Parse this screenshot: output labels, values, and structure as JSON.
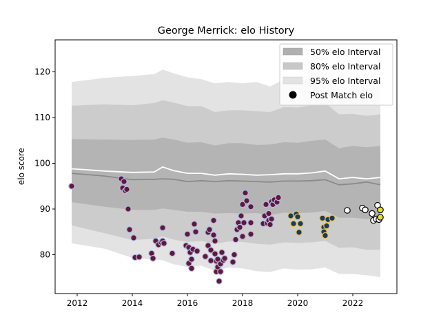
{
  "chart_data": {
    "type": "scatter",
    "title": "George Merrick: elo History",
    "xlabel": "",
    "ylabel": "elo score",
    "xlim": [
      2011.2,
      2023.6
    ],
    "ylim": [
      71.5,
      127
    ],
    "x_ticks": [
      "2012",
      "2014",
      "2016",
      "2018",
      "2020",
      "2022"
    ],
    "y_ticks": [
      "80",
      "90",
      "100",
      "110",
      "120"
    ],
    "grid": false,
    "legend_position": "top-right",
    "legend": [
      {
        "label": "50% elo Interval",
        "color": "#b0b0b0"
      },
      {
        "label": "80% elo Interval",
        "color": "#c8c8c8"
      },
      {
        "label": "95% elo Interval",
        "color": "#e3e3e3"
      },
      {
        "label": "Post Match elo",
        "color": "#000000"
      }
    ],
    "bands": {
      "x": [
        2011.8,
        2013.0,
        2014.0,
        2014.8,
        2015.1,
        2015.5,
        2016.0,
        2016.5,
        2017.0,
        2017.5,
        2018.0,
        2018.5,
        2019.0,
        2019.5,
        2020.0,
        2020.5,
        2021.0,
        2021.5,
        2022.0,
        2022.5,
        2023.0
      ],
      "p95_upper": [
        117.8,
        118.7,
        119.1,
        119.5,
        120.5,
        119.7,
        118.8,
        118.4,
        117.5,
        117.8,
        117.5,
        117.8,
        116.8,
        118.3,
        118.2,
        118.6,
        119.0,
        116.7,
        117.1,
        116.5,
        116.6
      ],
      "p80_upper": [
        112.6,
        112.9,
        112.7,
        113.2,
        113.8,
        113.3,
        112.5,
        112.5,
        111.2,
        111.6,
        111.6,
        111.4,
        111.2,
        112.3,
        112.2,
        112.7,
        113.2,
        110.7,
        110.8,
        110.4,
        110.7
      ],
      "p50_upper": [
        105.3,
        105.2,
        105.1,
        105.2,
        105.6,
        105.2,
        104.5,
        104.6,
        103.9,
        104.4,
        104.4,
        104.0,
        104.1,
        104.6,
        104.5,
        104.9,
        105.2,
        103.3,
        103.8,
        103.5,
        103.8
      ],
      "median": [
        97.8,
        97.2,
        96.4,
        96.5,
        96.6,
        96.5,
        96.0,
        96.2,
        96.0,
        96.2,
        96.1,
        96.0,
        95.9,
        96.1,
        96.1,
        96.2,
        96.4,
        95.3,
        95.5,
        95.9,
        95.3
      ],
      "mean": [
        98.8,
        98.3,
        98.0,
        98.1,
        99.2,
        98.4,
        97.8,
        97.8,
        97.4,
        97.7,
        97.6,
        97.4,
        97.5,
        97.7,
        97.7,
        97.9,
        98.3,
        96.6,
        96.9,
        96.6,
        96.9
      ],
      "p50_lower": [
        91.5,
        90.5,
        89.8,
        89.8,
        90.1,
        89.8,
        89.4,
        89.4,
        89.0,
        89.1,
        89.0,
        89.1,
        88.7,
        89.2,
        89.1,
        89.2,
        89.6,
        88.1,
        88.1,
        87.8,
        87.9
      ],
      "p80_lower": [
        86.4,
        84.7,
        83.2,
        83.5,
        84.0,
        83.3,
        82.8,
        83.0,
        82.4,
        82.9,
        82.8,
        82.4,
        82.2,
        82.7,
        82.6,
        82.7,
        83.0,
        81.5,
        81.6,
        81.1,
        81.1
      ],
      "p95_lower": [
        82.5,
        81.3,
        79.3,
        78.9,
        78.8,
        77.9,
        77.3,
        77.6,
        76.5,
        77.2,
        77.0,
        76.4,
        76.2,
        77.0,
        76.7,
        76.8,
        77.2,
        75.8,
        75.8,
        75.5,
        75.1
      ]
    },
    "series": [
      {
        "color": "#5e1a3a",
        "edge": "#b8b8e6",
        "points": [
          [
            2011.8,
            95.0
          ],
          [
            2013.6,
            96.6
          ],
          [
            2013.7,
            96.0
          ],
          [
            2013.65,
            94.6
          ],
          [
            2013.75,
            94.0
          ],
          [
            2013.8,
            94.3
          ],
          [
            2013.85,
            90.0
          ],
          [
            2013.9,
            85.5
          ],
          [
            2014.05,
            83.7
          ],
          [
            2014.1,
            79.4
          ],
          [
            2014.25,
            79.5
          ],
          [
            2014.7,
            80.3
          ],
          [
            2014.75,
            79.2
          ],
          [
            2014.85,
            83.0
          ],
          [
            2014.95,
            82.2
          ],
          [
            2015.05,
            82.7
          ],
          [
            2015.1,
            83.0
          ],
          [
            2015.15,
            82.5
          ],
          [
            2015.1,
            85.9
          ],
          [
            2015.45,
            80.3
          ],
          [
            2015.95,
            82.0
          ],
          [
            2016.0,
            84.5
          ],
          [
            2016.05,
            78.1
          ],
          [
            2016.05,
            81.6
          ],
          [
            2016.1,
            80.5
          ],
          [
            2016.15,
            79.0
          ],
          [
            2016.15,
            77.0
          ],
          [
            2016.2,
            81.2
          ],
          [
            2016.25,
            86.7
          ],
          [
            2016.3,
            85.0
          ],
          [
            2016.35,
            80.8
          ],
          [
            2016.65,
            79.6
          ],
          [
            2016.75,
            82.0
          ],
          [
            2016.75,
            84.9
          ],
          [
            2016.8,
            85.5
          ],
          [
            2016.85,
            81.0
          ],
          [
            2016.85,
            78.7
          ],
          [
            2016.95,
            87.5
          ],
          [
            2016.95,
            84.3
          ],
          [
            2017.0,
            83.0
          ],
          [
            2017.0,
            80.2
          ],
          [
            2017.05,
            78.6
          ],
          [
            2017.05,
            76.3
          ],
          [
            2017.1,
            79.0
          ],
          [
            2017.1,
            77.3
          ],
          [
            2017.15,
            74.2
          ],
          [
            2017.2,
            78.0
          ],
          [
            2017.2,
            76.3
          ],
          [
            2017.25,
            80.5
          ],
          [
            2017.3,
            78.8
          ],
          [
            2017.35,
            79.2
          ],
          [
            2017.65,
            78.4
          ],
          [
            2017.7,
            80.0
          ],
          [
            2017.75,
            83.3
          ],
          [
            2017.8,
            85.5
          ],
          [
            2017.85,
            87.0
          ],
          [
            2017.9,
            86.0
          ],
          [
            2017.95,
            88.5
          ],
          [
            2018.0,
            84.0
          ],
          [
            2018.0,
            91.0
          ],
          [
            2018.05,
            87.0
          ],
          [
            2018.1,
            93.5
          ],
          [
            2018.15,
            91.8
          ],
          [
            2018.3,
            87.0
          ],
          [
            2018.3,
            84.5
          ],
          [
            2018.3,
            90.5
          ],
          [
            2018.75,
            86.8
          ],
          [
            2018.8,
            88.5
          ],
          [
            2018.85,
            91.0
          ],
          [
            2018.9,
            86.9
          ],
          [
            2018.95,
            89.0
          ],
          [
            2018.95,
            87.5
          ],
          [
            2019.0,
            86.6
          ],
          [
            2019.05,
            87.8
          ],
          [
            2019.05,
            91.6
          ],
          [
            2019.1,
            91.0
          ],
          [
            2019.15,
            92.0
          ],
          [
            2019.25,
            91.5
          ],
          [
            2019.3,
            92.5
          ]
        ]
      },
      {
        "color": "#1a3a5e",
        "edge": "#e8c24a",
        "points": [
          [
            2019.75,
            88.5
          ],
          [
            2019.85,
            86.8
          ],
          [
            2019.95,
            88.9
          ],
          [
            2020.0,
            88.3
          ],
          [
            2020.05,
            84.9
          ],
          [
            2020.1,
            86.8
          ],
          [
            2020.9,
            88.0
          ],
          [
            2020.95,
            86.0
          ],
          [
            2020.95,
            85.0
          ],
          [
            2021.0,
            84.2
          ],
          [
            2021.05,
            86.3
          ],
          [
            2021.1,
            87.7
          ],
          [
            2021.25,
            88.0
          ]
        ]
      },
      {
        "color": "#ffffff",
        "edge": "#000000",
        "points": [
          [
            2021.8,
            89.7
          ],
          [
            2022.35,
            90.2
          ],
          [
            2022.45,
            89.8
          ],
          [
            2022.7,
            89.0
          ],
          [
            2022.75,
            87.5
          ],
          [
            2022.85,
            87.8
          ],
          [
            2022.9,
            90.8
          ],
          [
            2022.95,
            87.7
          ]
        ]
      },
      {
        "color": "#e8e030",
        "edge": "#000000",
        "points": [
          [
            2023.0,
            88.2
          ],
          [
            2023.0,
            89.8
          ]
        ]
      }
    ]
  }
}
